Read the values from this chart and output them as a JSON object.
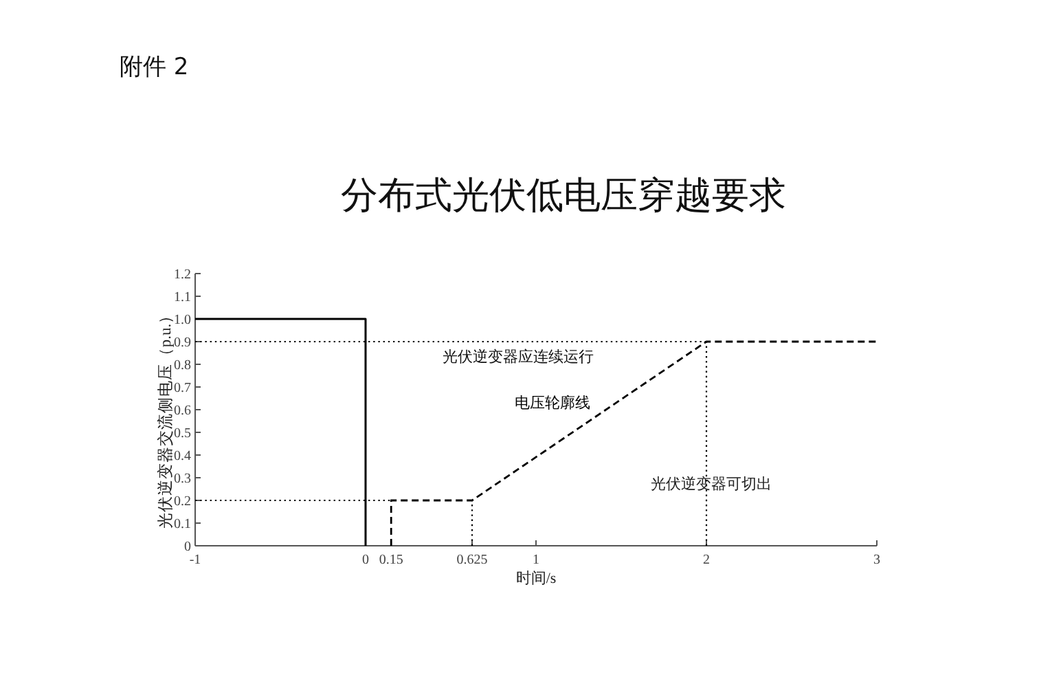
{
  "chart_data": {
    "type": "line",
    "title": "分布式光伏低电压穿越要求",
    "xlabel": "时间/s",
    "ylabel": "光伏逆变器交流侧电压（p.u.）",
    "xlim": [
      -1,
      3
    ],
    "xticks": [
      -1,
      0,
      0.15,
      0.625,
      1,
      2,
      3
    ],
    "ylim": [
      0,
      1.2
    ],
    "yticks": [
      0,
      0.1,
      0.2,
      0.3,
      0.4,
      0.5,
      0.6,
      0.7,
      0.8,
      0.9,
      {
        "value": 1,
        "label": "1.0"
      },
      1.1,
      1.2
    ],
    "series": [
      {
        "color": "#000000",
        "line_style": "solid",
        "x": [
          -1,
          0,
          0
        ],
        "values": [
          1,
          1,
          0
        ]
      },
      {
        "name": "电压轮廓线",
        "color": "#000000",
        "line_style": "dashed",
        "x": [
          0.15,
          0.15,
          0.625,
          2,
          3
        ],
        "values": [
          0,
          0.2,
          0.2,
          0.9,
          0.9
        ]
      },
      {
        "color": "#000000",
        "line_style": "dotted",
        "x": [
          -1,
          2
        ],
        "values": [
          0.9,
          0.9
        ]
      },
      {
        "color": "#000000",
        "line_style": "dotted",
        "x": [
          -1,
          0.15
        ],
        "values": [
          0.2,
          0.2
        ]
      },
      {
        "color": "#000000",
        "line_style": "dotted",
        "x": [
          0.625,
          0.625
        ],
        "values": [
          0,
          0.2
        ]
      },
      {
        "color": "#000000",
        "line_style": "dotted",
        "x": [
          2,
          2
        ],
        "values": [
          0,
          0.9
        ]
      }
    ],
    "annotations": [
      "附件 2",
      "光伏逆变器应连续运行",
      {
        "text": "光伏逆变器可切出",
        "x": 2.03,
        "y": 0.27
      }
    ]
  }
}
